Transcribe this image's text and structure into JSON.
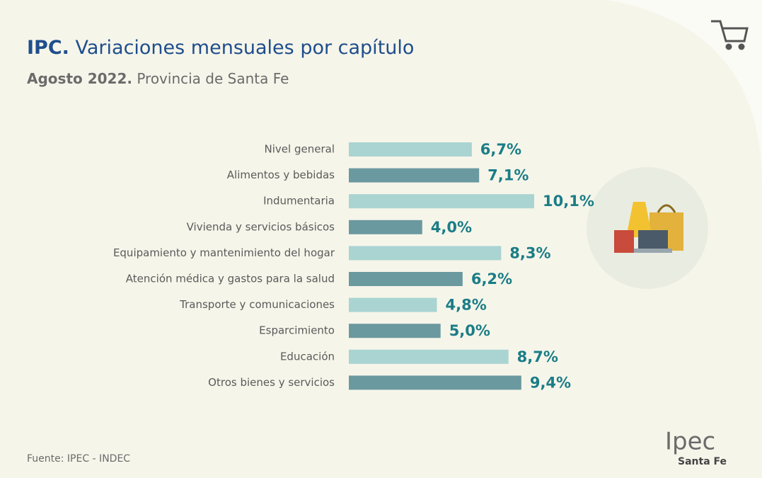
{
  "chart_data": {
    "type": "hbar",
    "title_prefix": "IPC.",
    "title": "Variaciones mensuales por capítulo",
    "subtitle_prefix": "Agosto 2022.",
    "subtitle": "Provincia de Santa Fe",
    "categories": [
      "Nivel general",
      "Alimentos y bebidas",
      "Indumentaria",
      "Vivienda y servicios básicos",
      "Equipamiento y mantenimiento del hogar",
      "Atención médica y gastos para la salud",
      "Transporte y comunicaciones",
      "Esparcimiento",
      "Educación",
      "Otros bienes y servicios"
    ],
    "values": [
      6.7,
      7.1,
      10.1,
      4.0,
      8.3,
      6.2,
      4.8,
      5.0,
      8.7,
      9.4
    ],
    "value_labels": [
      "6,7%",
      "7,1%",
      "10,1%",
      "4,0%",
      "8,3%",
      "6,2%",
      "4,8%",
      "5,0%",
      "8,7%",
      "9,4%"
    ],
    "colors": [
      "#a9d4d2",
      "#6b99a0",
      "#a9d4d2",
      "#6b99a0",
      "#a9d4d2",
      "#6b99a0",
      "#a9d4d2",
      "#6b99a0",
      "#a9d4d2",
      "#6b99a0"
    ],
    "source": "Fuente: IPEC - INDEC"
  },
  "logo": {
    "name": "Ipec",
    "region": "Santa Fe"
  }
}
